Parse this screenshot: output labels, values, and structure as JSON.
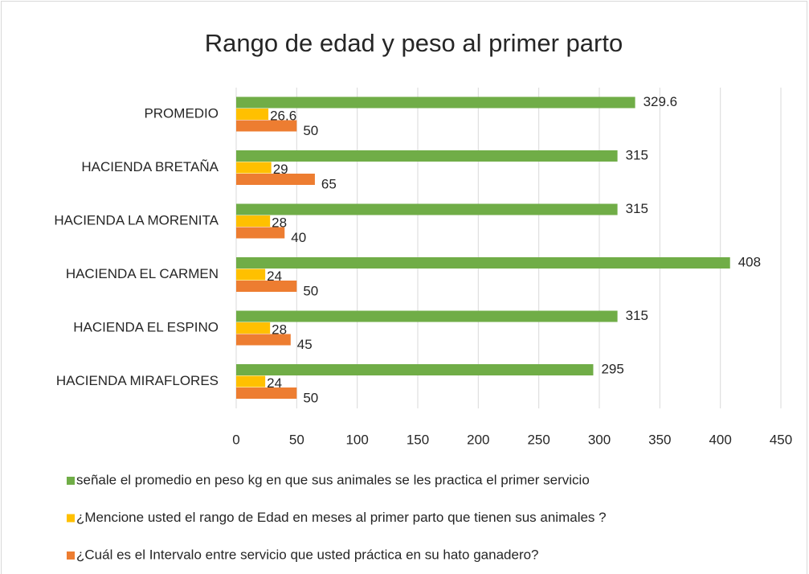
{
  "chart_data": {
    "type": "bar",
    "orientation": "horizontal",
    "title": "Rango de edad y peso al primer parto",
    "categories": [
      "PROMEDIO",
      "HACIENDA BRETAÑA",
      "HACIENDA LA MORENITA",
      "HACIENDA EL CARMEN",
      "HACIENDA EL ESPINO",
      "HACIENDA MIRAFLORES"
    ],
    "series": [
      {
        "name": "señale el promedio en peso kg en que sus animales se les practica el primer servicio",
        "color": "#70ad47",
        "values": [
          329.6,
          315,
          315,
          408,
          315,
          295
        ]
      },
      {
        "name": "¿Mencione usted el rango de Edad  en meses al primer parto que tienen sus animales ?",
        "color": "#ffc000",
        "values": [
          26.6,
          29,
          28,
          24,
          28,
          24
        ]
      },
      {
        "name": "¿Cuál es el  Intervalo  entre servicio que usted práctica en su hato ganadero?",
        "color": "#ed7d31",
        "values": [
          50,
          65,
          40,
          50,
          45,
          50
        ]
      }
    ],
    "xlim": [
      0,
      450
    ],
    "xticks": [
      0,
      50,
      100,
      150,
      200,
      250,
      300,
      350,
      400,
      450
    ],
    "grid": true
  }
}
